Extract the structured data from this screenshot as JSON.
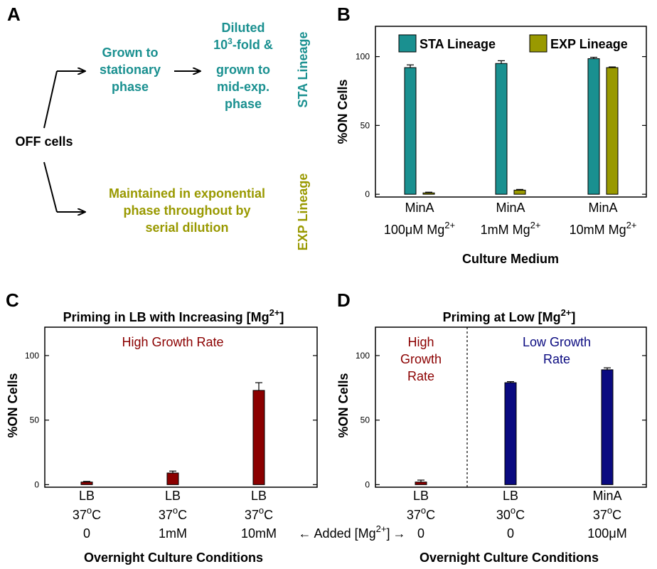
{
  "panels": {
    "A": {
      "letter": "A",
      "start": "OFF cells",
      "upper_step1": [
        "Grown to",
        "stationary",
        "phase"
      ],
      "upper_step2_pre": "Diluted",
      "upper_step2_base": "10",
      "upper_step2_sup": "3",
      "upper_step2_post": "-fold &",
      "upper_step2_rest": [
        "grown to",
        "mid-exp.",
        "phase"
      ],
      "upper_tag": "STA Lineage",
      "lower_text": [
        "Maintained in exponential",
        "phase throughout by",
        "serial dilution"
      ],
      "lower_tag": "EXP Lineage",
      "colors": {
        "sta": "#1a9090",
        "exp": "#999900"
      }
    },
    "B": {
      "letter": "B",
      "ylabel": "%ON Cells",
      "xlabel": "Culture Medium",
      "legend": [
        "STA Lineage",
        "EXP Lineage"
      ],
      "categories": [
        {
          "line1": "MinA",
          "line2_pre": "100",
          "mu": "μ",
          "line2_post": "M Mg",
          "sup": "2+"
        },
        {
          "line1": "MinA",
          "line2_pre": "1mM Mg",
          "mu": "",
          "line2_post": "",
          "sup": "2+"
        },
        {
          "line1": "MinA",
          "line2_pre": "10mM Mg",
          "mu": "",
          "line2_post": "",
          "sup": "2+"
        }
      ]
    },
    "C": {
      "letter": "C",
      "title_pre": "Priming in LB with Increasing [Mg",
      "title_sup": "2+",
      "title_post": "]",
      "ylabel": "%ON Cells",
      "xlabel": "Overnight Culture Conditions",
      "annotation": "High Growth Rate",
      "categories": [
        {
          "medium": "LB",
          "temp": "37",
          "deg": "o",
          "unit": "C",
          "mg": "0"
        },
        {
          "medium": "LB",
          "temp": "37",
          "deg": "o",
          "unit": "C",
          "mg": "1mM"
        },
        {
          "medium": "LB",
          "temp": "37",
          "deg": "o",
          "unit": "C",
          "mg": "10mM"
        }
      ]
    },
    "D": {
      "letter": "D",
      "title_pre": "Priming at Low [Mg",
      "title_sup": "2+",
      "title_post": "]",
      "ylabel": "%ON Cells",
      "xlabel": "Overnight Culture Conditions",
      "annotation_left": [
        "High",
        "Growth",
        "Rate"
      ],
      "annotation_right": [
        "Low Growth",
        "Rate"
      ],
      "categories": [
        {
          "medium": "LB",
          "temp": "37",
          "deg": "o",
          "unit": "C",
          "mg": "0"
        },
        {
          "medium": "LB",
          "temp": "30",
          "deg": "o",
          "unit": "C",
          "mg": "0"
        },
        {
          "medium": "MinA",
          "temp": "37",
          "deg": "o",
          "unit": "C",
          "mg_pre": "100",
          "mu": "μ",
          "mg": "M"
        }
      ]
    },
    "shared_label": {
      "arrow_left": "←",
      "text_pre": "Added [Mg",
      "sup": "2+",
      "text_post": "]",
      "arrow_right": "→"
    }
  },
  "chart_data": [
    {
      "panel": "B",
      "type": "bar",
      "categories": [
        "MinA 100μM Mg2+",
        "MinA 1mM Mg2+",
        "MinA 10mM Mg2+"
      ],
      "series": [
        {
          "name": "STA Lineage",
          "values": [
            92,
            95,
            98.5
          ],
          "errors": [
            2,
            2,
            1
          ],
          "color": "#1a9090"
        },
        {
          "name": "EXP Lineage",
          "values": [
            1,
            3,
            92
          ],
          "errors": [
            0.5,
            0.5,
            0.5
          ],
          "color": "#999900"
        }
      ],
      "xlabel": "Culture Medium",
      "ylabel": "%ON Cells",
      "ylim": [
        -2,
        122
      ],
      "yticks": [
        0,
        50,
        100
      ],
      "legend_position": "top"
    },
    {
      "panel": "C",
      "type": "bar",
      "title": "Priming in LB with Increasing [Mg2+]",
      "categories": [
        "LB 37oC 0",
        "LB 37oC 1mM",
        "LB 37oC 10mM"
      ],
      "series": [
        {
          "values": [
            2,
            9,
            73
          ],
          "errors": [
            0.5,
            1.5,
            6
          ],
          "color": "#8b0000"
        }
      ],
      "xlabel": "Overnight Culture Conditions",
      "ylabel": "%ON Cells",
      "ylim": [
        -2,
        122
      ],
      "yticks": [
        0,
        50,
        100
      ]
    },
    {
      "panel": "D",
      "type": "bar",
      "title": "Priming at Low [Mg2+]",
      "categories": [
        "LB 37oC 0",
        "LB 30oC 0",
        "MinA 37oC 100μM"
      ],
      "series": [
        {
          "values": [
            2,
            79,
            89
          ],
          "errors": [
            1.5,
            0.8,
            1.5
          ],
          "colors": [
            "#8b0000",
            "#0a0a80",
            "#0a0a80"
          ]
        }
      ],
      "xlabel": "Overnight Culture Conditions",
      "ylabel": "%ON Cells",
      "ylim": [
        -2,
        122
      ],
      "yticks": [
        0,
        50,
        100
      ],
      "divider_between": [
        0,
        1
      ]
    }
  ]
}
